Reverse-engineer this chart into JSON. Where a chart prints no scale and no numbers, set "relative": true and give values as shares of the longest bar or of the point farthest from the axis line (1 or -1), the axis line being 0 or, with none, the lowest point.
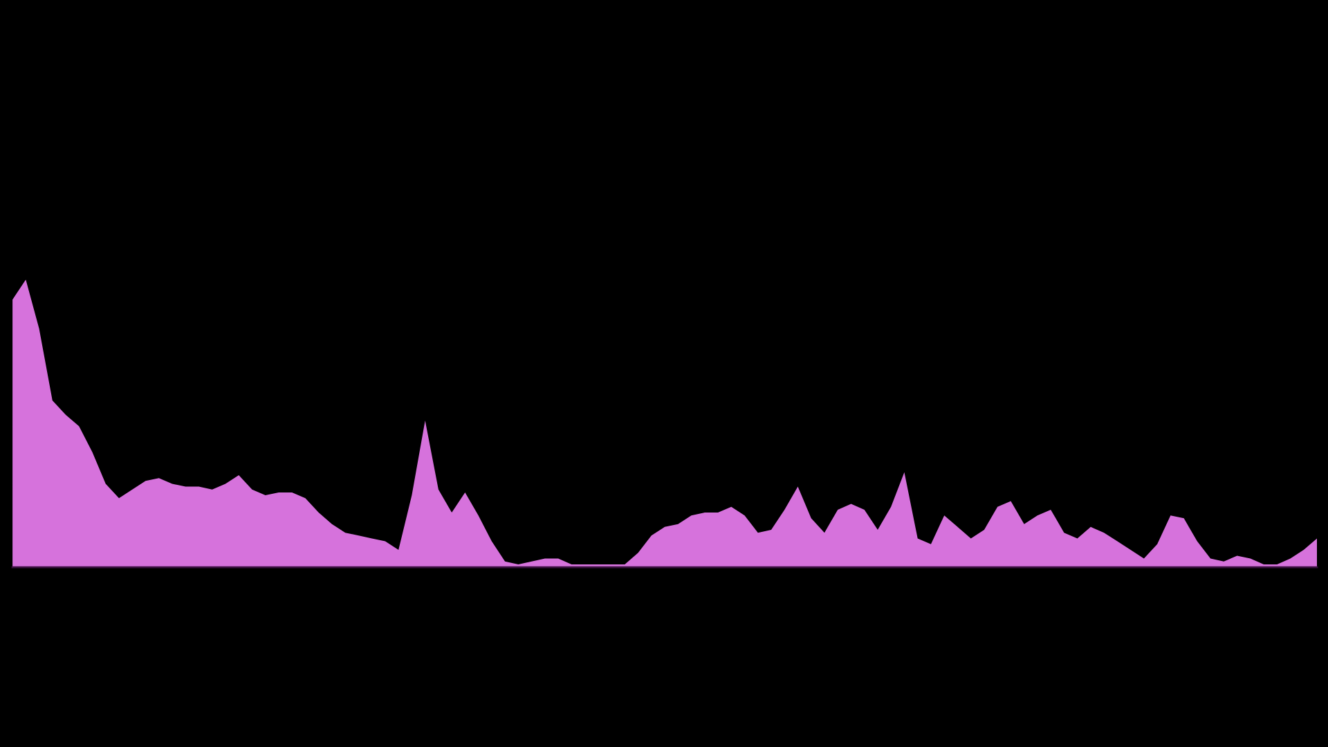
{
  "chart_data": {
    "type": "area",
    "relative": true,
    "categories": [
      null,
      null,
      null,
      null,
      null,
      null,
      null,
      null,
      null,
      null,
      null,
      null,
      null,
      null,
      null,
      null,
      null,
      null,
      null,
      null,
      null,
      null,
      null,
      null,
      null,
      null,
      null,
      null,
      null,
      null,
      null,
      null,
      null,
      null,
      null,
      null,
      null,
      null,
      null,
      null,
      null,
      null,
      null,
      null,
      null,
      null,
      null,
      null,
      null,
      null,
      null,
      null,
      null,
      null,
      null,
      null,
      null,
      null,
      null,
      null,
      null,
      null,
      null,
      null,
      null,
      null,
      null,
      null,
      null,
      null,
      null,
      null,
      null,
      null,
      null,
      null,
      null,
      null,
      null,
      null,
      null,
      null,
      null,
      null,
      null,
      null,
      null,
      null,
      null,
      null,
      null,
      null,
      null,
      null,
      null,
      null,
      null,
      null,
      null
    ],
    "series": [
      {
        "color": "#d672dc",
        "values": [
          0.93,
          1.0,
          0.83,
          0.58,
          0.53,
          0.49,
          0.4,
          0.29,
          0.24,
          0.27,
          0.3,
          0.31,
          0.29,
          0.28,
          0.28,
          0.27,
          0.29,
          0.32,
          0.27,
          0.25,
          0.26,
          0.26,
          0.24,
          0.19,
          0.15,
          0.12,
          0.11,
          0.1,
          0.09,
          0.06,
          0.25,
          0.51,
          0.27,
          0.19,
          0.26,
          0.18,
          0.09,
          0.02,
          0.01,
          0.02,
          0.03,
          0.03,
          0.01,
          0.01,
          0.01,
          0.01,
          0.01,
          0.05,
          0.11,
          0.14,
          0.15,
          0.18,
          0.19,
          0.19,
          0.21,
          0.18,
          0.12,
          0.13,
          0.2,
          0.28,
          0.17,
          0.12,
          0.2,
          0.22,
          0.2,
          0.13,
          0.21,
          0.33,
          0.1,
          0.08,
          0.18,
          0.14,
          0.1,
          0.13,
          0.21,
          0.23,
          0.15,
          0.18,
          0.2,
          0.12,
          0.1,
          0.14,
          0.12,
          0.09,
          0.06,
          0.03,
          0.08,
          0.18,
          0.17,
          0.09,
          0.03,
          0.02,
          0.04,
          0.03,
          0.01,
          0.01,
          0.03,
          0.06,
          0.1
        ]
      }
    ]
  }
}
